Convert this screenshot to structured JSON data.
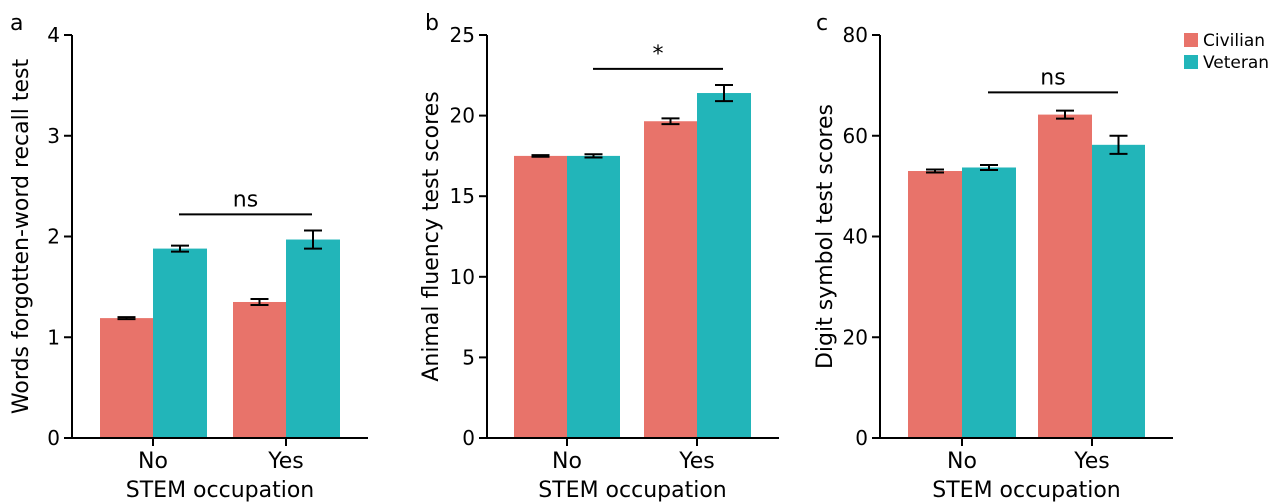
{
  "colors": {
    "civilian": "#E8736A",
    "veteran": "#22B5B9"
  },
  "legend": [
    {
      "label": "Civilian",
      "color": "#E8736A"
    },
    {
      "label": "Veteran",
      "color": "#22B5B9"
    }
  ],
  "chart_data": [
    {
      "type": "bar",
      "panel": "a",
      "xlabel": "STEM occupation",
      "ylabel": "Words forgotten-word recall test",
      "categories": [
        "No",
        "Yes"
      ],
      "ylim": [
        0,
        4
      ],
      "yticks": [
        0,
        1,
        2,
        3,
        4
      ],
      "series": [
        {
          "name": "Civilian",
          "values": [
            1.19,
            1.35
          ],
          "errors": [
            0.01,
            0.03
          ]
        },
        {
          "name": "Veteran",
          "values": [
            1.88,
            1.97
          ],
          "errors": [
            0.03,
            0.09
          ]
        }
      ],
      "significance": {
        "label": "ns",
        "y": 2.22
      }
    },
    {
      "type": "bar",
      "panel": "b",
      "xlabel": "STEM occupation",
      "ylabel": "Animal fluency test scores",
      "categories": [
        "No",
        "Yes"
      ],
      "ylim": [
        0,
        25
      ],
      "yticks": [
        0,
        5,
        10,
        15,
        20,
        25
      ],
      "series": [
        {
          "name": "Civilian",
          "values": [
            17.5,
            19.65
          ],
          "errors": [
            0.05,
            0.18
          ]
        },
        {
          "name": "Veteran",
          "values": [
            17.5,
            21.4
          ],
          "errors": [
            0.1,
            0.5
          ]
        }
      ],
      "significance": {
        "label": "*",
        "y": 22.9
      }
    },
    {
      "type": "bar",
      "panel": "c",
      "xlabel": "STEM occupation",
      "ylabel": "Digit symbol test scores",
      "categories": [
        "No",
        "Yes"
      ],
      "ylim": [
        0,
        80
      ],
      "yticks": [
        0,
        20,
        40,
        60,
        80
      ],
      "series": [
        {
          "name": "Civilian",
          "values": [
            53.0,
            64.2
          ],
          "errors": [
            0.3,
            0.8
          ]
        },
        {
          "name": "Veteran",
          "values": [
            53.7,
            58.2
          ],
          "errors": [
            0.5,
            1.8
          ]
        }
      ],
      "significance": {
        "label": "ns",
        "y": 68.6
      }
    }
  ]
}
